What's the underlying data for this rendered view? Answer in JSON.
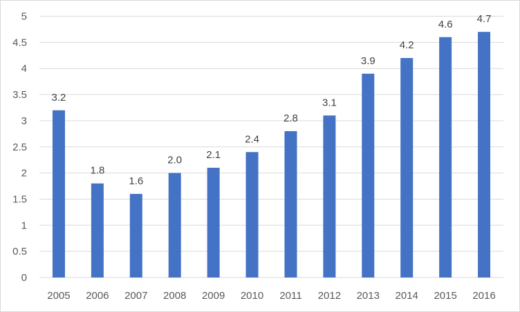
{
  "chart_data": {
    "type": "bar",
    "categories": [
      "2005",
      "2006",
      "2007",
      "2008",
      "2009",
      "2010",
      "2011",
      "2012",
      "2013",
      "2014",
      "2015",
      "2016"
    ],
    "values": [
      3.2,
      1.8,
      1.6,
      2.0,
      2.1,
      2.4,
      2.8,
      3.1,
      3.9,
      4.2,
      4.6,
      4.7
    ],
    "data_labels": [
      "3.2",
      "1.8",
      "1.6",
      "2.0",
      "2.1",
      "2.4",
      "2.8",
      "3.1",
      "3.9",
      "4.2",
      "4.6",
      "4.7"
    ],
    "y_ticks": [
      "0",
      "0.5",
      "1",
      "1.5",
      "2",
      "2.5",
      "3",
      "3.5",
      "4",
      "4.5",
      "5"
    ],
    "ylim": [
      0,
      5
    ],
    "title": "",
    "xlabel": "",
    "ylabel": "",
    "grid": true,
    "bar_color": "#4472c4",
    "grid_color": "#d9d9d9"
  }
}
